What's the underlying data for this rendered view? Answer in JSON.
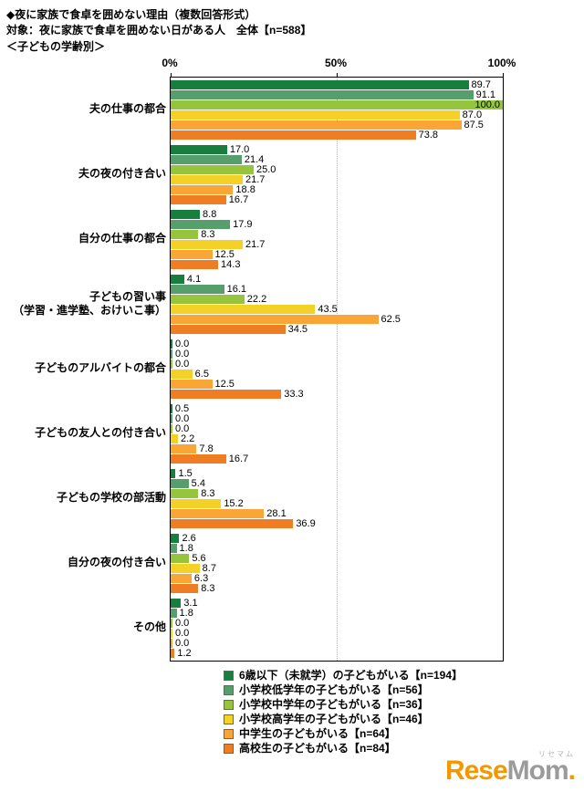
{
  "header": {
    "line1": "◆夜に家族で食卓を囲めない理由（複数回答形式）",
    "line2": "対象：夜に家族で食卓を囲めない日がある人　全体【n=588】",
    "line3": "＜子どもの学齢別＞"
  },
  "chart_data": {
    "type": "bar",
    "orientation": "horizontal",
    "xlim": [
      0,
      100
    ],
    "x_ticks": [
      "0%",
      "50%",
      "100%"
    ],
    "x_tick_positions": [
      0,
      50,
      100
    ],
    "grid": "vertical line at 50%",
    "legend_position": "bottom",
    "categories": [
      "夫の仕事の都合",
      "夫の夜の付き合い",
      "自分の仕事の都合",
      "子どもの習い事\n（学習・進学塾、おけいこ事）",
      "子どものアルバイトの都合",
      "子どもの友人との付き合い",
      "子どもの学校の部活動",
      "自分の夜の付き合い",
      "その他"
    ],
    "series": [
      {
        "name": "6歳以下（未就学）の子どもがいる【n=194】",
        "color": "#177f3d",
        "values": [
          89.7,
          17.0,
          8.8,
          4.1,
          0.0,
          0.5,
          1.5,
          2.6,
          3.1
        ]
      },
      {
        "name": "小学校低学年の子どもがいる【n=56】",
        "color": "#569e6b",
        "values": [
          91.1,
          21.4,
          17.9,
          16.1,
          0.0,
          0.0,
          5.4,
          1.8,
          1.8
        ]
      },
      {
        "name": "小学校中学年の子どもがいる【n=36】",
        "color": "#97c43e",
        "values": [
          100.0,
          25.0,
          8.3,
          22.2,
          0.0,
          0.0,
          8.3,
          5.6,
          0.0
        ]
      },
      {
        "name": "小学校高学年の子どもがいる【n=46】",
        "color": "#f4d127",
        "values": [
          87.0,
          21.7,
          21.7,
          43.5,
          6.5,
          2.2,
          15.2,
          8.7,
          0.0
        ]
      },
      {
        "name": "中学生の子どもがいる【n=64】",
        "color": "#f9a637",
        "values": [
          87.5,
          18.8,
          12.5,
          62.5,
          12.5,
          7.8,
          28.1,
          6.3,
          0.0
        ]
      },
      {
        "name": "高校生の子どもがいる【n=84】",
        "color": "#ee7d23",
        "values": [
          73.8,
          16.7,
          14.3,
          34.5,
          33.3,
          16.7,
          36.9,
          8.3,
          1.2
        ]
      }
    ]
  },
  "watermark": {
    "part1": "Rese",
    "part2": "Mom",
    "dot": ".",
    "sub": "リセマム"
  }
}
